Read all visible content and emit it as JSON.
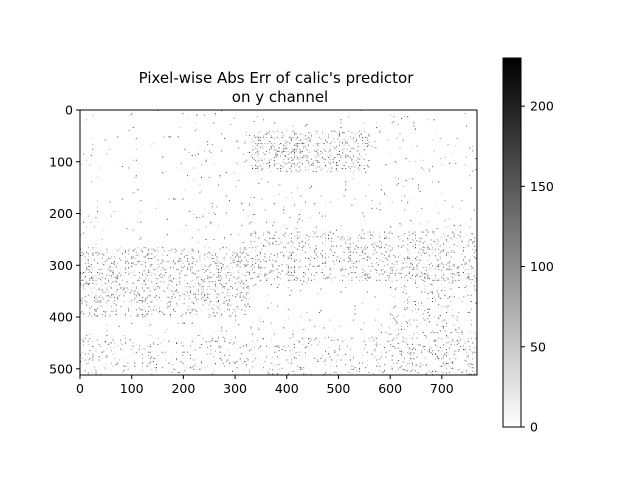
{
  "chart_data": {
    "type": "heatmap",
    "title": "Pixel-wise Abs Err of calic's predictor",
    "subtitle": "on y channel",
    "xlabel": "",
    "ylabel": "",
    "x_ticks": [
      0,
      100,
      200,
      300,
      400,
      500,
      600,
      700
    ],
    "y_ticks": [
      0,
      100,
      200,
      300,
      400,
      500
    ],
    "xlim": [
      0,
      768
    ],
    "ylim": [
      512,
      0
    ],
    "image_width": 768,
    "image_height": 512,
    "colormap": "gray_r",
    "colorbar": {
      "min": 0,
      "max": 230,
      "ticks": [
        0,
        50,
        100,
        150,
        200
      ]
    },
    "grid": false,
    "error_regions": [
      {
        "name": "upper dark ridge",
        "x": [
          330,
          560
        ],
        "y": [
          40,
          120
        ],
        "density": 0.22
      },
      {
        "name": "left textured band",
        "x": [
          0,
          330
        ],
        "y": [
          265,
          400
        ],
        "density": 0.18
      },
      {
        "name": "right textured band",
        "x": [
          330,
          768
        ],
        "y": [
          235,
          330
        ],
        "density": 0.15
      },
      {
        "name": "lower right texture",
        "x": [
          600,
          768
        ],
        "y": [
          300,
          512
        ],
        "density": 0.08
      },
      {
        "name": "bottom band",
        "x": [
          0,
          768
        ],
        "y": [
          440,
          512
        ],
        "density": 0.07
      },
      {
        "name": "background",
        "x": [
          0,
          768
        ],
        "y": [
          0,
          512
        ],
        "density": 0.02
      }
    ]
  }
}
